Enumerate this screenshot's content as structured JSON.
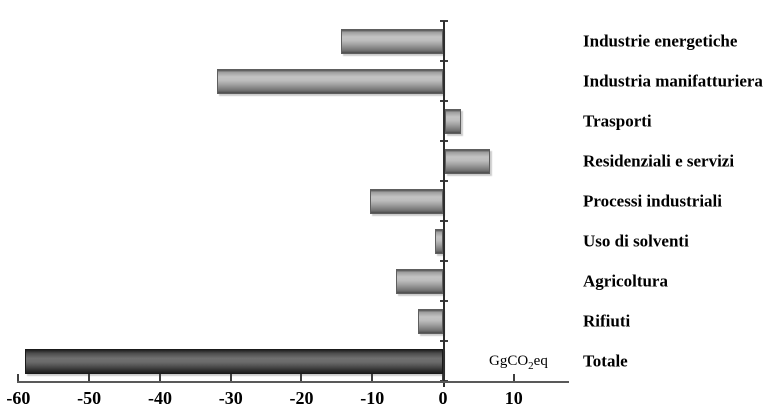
{
  "chart_data": {
    "type": "bar",
    "orientation": "horizontal",
    "title": "",
    "xlabel": "GgCO2eq",
    "ylabel": "",
    "categories": [
      "Industrie energetiche",
      "Industria manifatturiera",
      "Trasporti",
      "Residenziali e servizi",
      "Processi industriali",
      "Uso di solventi",
      "Agricoltura",
      "Rifiuti",
      "Totale"
    ],
    "values": [
      -14.4,
      -32.0,
      2.2,
      6.3,
      -10.3,
      -1.1,
      -6.6,
      -3.5,
      -59.1
    ],
    "bar_style": [
      "gray",
      "gray",
      "gray",
      "gray",
      "gray",
      "gray",
      "gray",
      "gray",
      "dark"
    ],
    "xticks": [
      -60,
      -50,
      -40,
      -30,
      -20,
      -10,
      0,
      10
    ],
    "xlim": [
      -60.2,
      17.8
    ],
    "grid": false,
    "legend": false,
    "unit": {
      "prefix": "GgCO",
      "sub": "2",
      "suffix": "eq"
    }
  },
  "style": {
    "background": "#ffffff",
    "axis_color": "#3f3f3f",
    "text_color": "#000000",
    "bar_border_gray": "#5e5e5e",
    "bar_border_dark": "#1a1a1a",
    "bar_gradient_gray": [
      [
        "#505050",
        0
      ],
      [
        "#9e9e9e",
        10
      ],
      [
        "#c3c3c3",
        30
      ],
      [
        "#bdbdbd",
        46
      ],
      [
        "#a4a4a4",
        62
      ],
      [
        "#8a8a8a",
        76
      ],
      [
        "#707070",
        90
      ],
      [
        "#4b4b4b",
        100
      ]
    ],
    "bar_gradient_dark": [
      [
        "#202020",
        0
      ],
      [
        "#4c4c4c",
        14
      ],
      [
        "#707070",
        36
      ],
      [
        "#6b6b6b",
        52
      ],
      [
        "#575757",
        66
      ],
      [
        "#3b3b3b",
        82
      ],
      [
        "#1d1d1d",
        100
      ]
    ]
  }
}
